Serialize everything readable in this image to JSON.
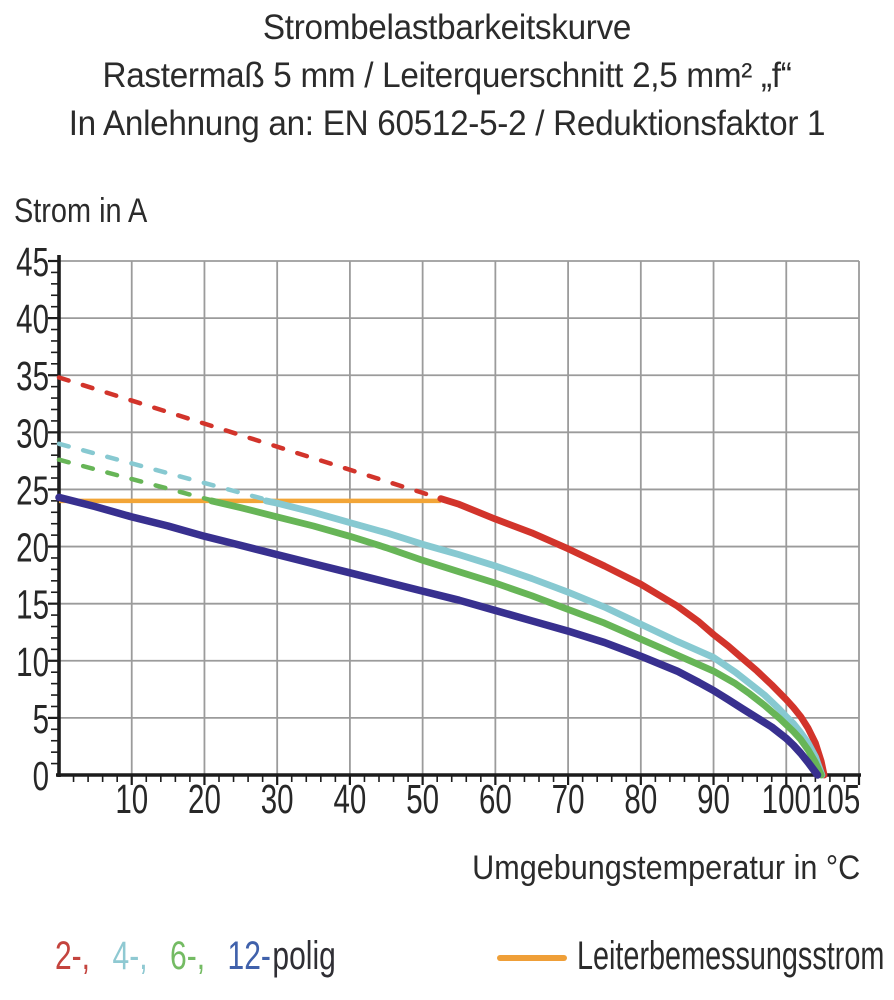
{
  "title": {
    "line1": "Strombelastbarkeitskurve",
    "line2": "Rastermaß 5 mm / Leiterquerschnitt 2,5 mm² „f“",
    "line3": "In Anlehnung an: EN 60512-5-2 / Reduktionsfaktor 1"
  },
  "axes": {
    "y_title": "Strom in A",
    "x_title": "Umgebungstemperatur in °C"
  },
  "legend": {
    "poles": [
      {
        "label": "2-,",
        "color": "#c4443e"
      },
      {
        "label": "4-,",
        "color": "#8fc9d2"
      },
      {
        "label": "6-,",
        "color": "#74bb63"
      },
      {
        "label": "12-",
        "color": "#4061ab"
      }
    ],
    "polig": "polig",
    "polig_color": "#2f2e34",
    "rated": {
      "label": "Leiterbemessungsstrom",
      "color": "#ef9f38"
    }
  },
  "chart_data": {
    "type": "line",
    "title": "Strombelastbarkeitskurve",
    "xlabel": "Umgebungstemperatur in °C",
    "ylabel": "Strom in A",
    "xlim": [
      0,
      110
    ],
    "ylim": [
      0,
      45
    ],
    "x_ticks": [
      10,
      20,
      30,
      40,
      50,
      60,
      70,
      80,
      90,
      100,
      105
    ],
    "y_ticks": [
      0,
      5,
      10,
      15,
      20,
      25,
      30,
      35,
      40,
      45
    ],
    "grid": true,
    "grid_step_x": 10,
    "grid_step_y": 5,
    "grid_color": "#9b9b9b",
    "axis_color": "#1c1c1c",
    "text_color": "#272727",
    "legend_position": "bottom",
    "rated_current_line": {
      "name": "Leiterbemessungsstrom",
      "value": 24,
      "x_range": [
        0,
        52.5
      ],
      "color": "#f2a537",
      "width": 4.5
    },
    "series": [
      {
        "name": "2-polig",
        "color": "#d2342b",
        "width": 6.8,
        "dashed_points": [
          [
            0,
            34.8
          ],
          [
            52.5,
            24.2
          ]
        ],
        "points": [
          [
            52.5,
            24.2
          ],
          [
            55,
            23.7
          ],
          [
            60,
            22.4
          ],
          [
            65,
            21.2
          ],
          [
            70,
            19.8
          ],
          [
            75,
            18.3
          ],
          [
            80,
            16.7
          ],
          [
            85,
            14.8
          ],
          [
            88,
            13.4
          ],
          [
            90,
            12.3
          ],
          [
            92,
            11.3
          ],
          [
            94,
            10.2
          ],
          [
            96,
            9.1
          ],
          [
            98,
            7.9
          ],
          [
            100,
            6.6
          ],
          [
            101,
            5.9
          ],
          [
            102,
            5.1
          ],
          [
            103,
            4.1
          ],
          [
            104,
            2.8
          ],
          [
            104.8,
            1.2
          ],
          [
            105.2,
            0
          ]
        ]
      },
      {
        "name": "4-polig",
        "color": "#87c9d1",
        "width": 6.8,
        "dashed_points": [
          [
            0,
            29
          ],
          [
            28.5,
            24.1
          ]
        ],
        "points": [
          [
            28.5,
            24
          ],
          [
            30,
            23.8
          ],
          [
            35,
            23
          ],
          [
            40,
            22.1
          ],
          [
            45,
            21.2
          ],
          [
            50,
            20.2
          ],
          [
            55,
            19.3
          ],
          [
            60,
            18.3
          ],
          [
            65,
            17.2
          ],
          [
            70,
            16
          ],
          [
            75,
            14.7
          ],
          [
            80,
            13.2
          ],
          [
            85,
            11.7
          ],
          [
            90,
            10.3
          ],
          [
            93,
            9
          ],
          [
            95,
            8
          ],
          [
            97,
            7
          ],
          [
            99,
            5.8
          ],
          [
            100,
            5.1
          ],
          [
            101,
            4.5
          ],
          [
            102,
            3.7
          ],
          [
            103,
            2.8
          ],
          [
            104,
            1.6
          ],
          [
            104.9,
            0
          ]
        ]
      },
      {
        "name": "6-polig",
        "color": "#67b557",
        "width": 6.8,
        "dashed_points": [
          [
            0,
            27.6
          ],
          [
            21,
            24.05
          ]
        ],
        "points": [
          [
            21,
            24
          ],
          [
            25,
            23.4
          ],
          [
            30,
            22.6
          ],
          [
            35,
            21.8
          ],
          [
            40,
            20.9
          ],
          [
            45,
            19.9
          ],
          [
            50,
            18.8
          ],
          [
            55,
            17.8
          ],
          [
            60,
            16.8
          ],
          [
            65,
            15.7
          ],
          [
            70,
            14.5
          ],
          [
            75,
            13.3
          ],
          [
            80,
            11.9
          ],
          [
            85,
            10.5
          ],
          [
            90,
            9.1
          ],
          [
            93,
            8
          ],
          [
            95,
            7.1
          ],
          [
            97,
            6.1
          ],
          [
            99,
            5
          ],
          [
            100,
            4.4
          ],
          [
            101,
            3.8
          ],
          [
            102,
            3.1
          ],
          [
            103,
            2.2
          ],
          [
            104,
            1.1
          ],
          [
            104.8,
            0
          ]
        ]
      },
      {
        "name": "12-polig",
        "color": "#38308f",
        "width": 7.5,
        "dashed_points": [],
        "points": [
          [
            0,
            24.3
          ],
          [
            5,
            23.5
          ],
          [
            10,
            22.6
          ],
          [
            15,
            21.8
          ],
          [
            20,
            20.9
          ],
          [
            25,
            20.1
          ],
          [
            30,
            19.3
          ],
          [
            35,
            18.5
          ],
          [
            40,
            17.7
          ],
          [
            45,
            16.9
          ],
          [
            50,
            16.1
          ],
          [
            55,
            15.3
          ],
          [
            60,
            14.4
          ],
          [
            65,
            13.5
          ],
          [
            70,
            12.6
          ],
          [
            75,
            11.6
          ],
          [
            80,
            10.4
          ],
          [
            85,
            9.1
          ],
          [
            88,
            8.1
          ],
          [
            90,
            7.4
          ],
          [
            92,
            6.6
          ],
          [
            94,
            5.8
          ],
          [
            96,
            5
          ],
          [
            98,
            4.2
          ],
          [
            100,
            3.2
          ],
          [
            101,
            2.6
          ],
          [
            102,
            1.9
          ],
          [
            103,
            1.1
          ],
          [
            104.3,
            0
          ]
        ]
      }
    ]
  }
}
